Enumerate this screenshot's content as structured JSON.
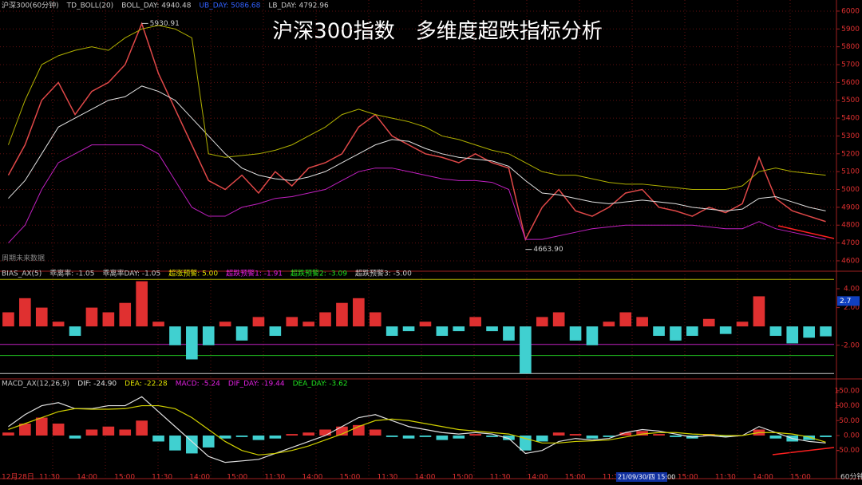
{
  "chart_data": [
    {
      "type": "line",
      "title": "沪深300指数　多维度超跌指标分析",
      "header": [
        {
          "text": "沪深300(60分钟)",
          "color": "#c8c8c8"
        },
        {
          "text": "TD_BOLL(20)",
          "color": "#c8c8c8"
        },
        {
          "text": "BOLL_DAY: 4940.48",
          "color": "#c8c8c8"
        },
        {
          "text": "UB_DAY: 5086.68",
          "color": "#3060ff"
        },
        {
          "text": "LB_DAY: 4792.96",
          "color": "#c8c8c8"
        }
      ],
      "note": "周期未来数据",
      "series": [
        {
          "name": "收盘",
          "color": "#e04848",
          "values": [
            5080,
            5250,
            5500,
            5600,
            5420,
            5550,
            5600,
            5700,
            5930,
            5650,
            5450,
            5250,
            5050,
            5000,
            5080,
            4980,
            5100,
            5020,
            5120,
            5150,
            5200,
            5350,
            5420,
            5300,
            5250,
            5200,
            5180,
            5150,
            5200,
            5150,
            5120,
            4720,
            4900,
            5000,
            4880,
            4850,
            4900,
            4980,
            5000,
            4900,
            4880,
            4850,
            4900,
            4870,
            4920,
            5180,
            4950,
            4880,
            4850,
            4820
          ]
        },
        {
          "name": "MID",
          "color": "#e0e0e0",
          "values": [
            4950,
            5050,
            5200,
            5350,
            5400,
            5450,
            5500,
            5520,
            5580,
            5550,
            5500,
            5400,
            5300,
            5200,
            5120,
            5080,
            5060,
            5050,
            5070,
            5100,
            5150,
            5200,
            5250,
            5280,
            5270,
            5230,
            5200,
            5180,
            5170,
            5160,
            5130,
            5050,
            4980,
            4970,
            4950,
            4930,
            4920,
            4930,
            4940,
            4930,
            4920,
            4900,
            4890,
            4880,
            4890,
            4950,
            4960,
            4930,
            4900,
            4880
          ]
        },
        {
          "name": "UB",
          "color": "#b0b000",
          "values": [
            5250,
            5500,
            5700,
            5750,
            5780,
            5800,
            5780,
            5850,
            5900,
            5920,
            5900,
            5850,
            5200,
            5180,
            5190,
            5200,
            5220,
            5250,
            5300,
            5350,
            5420,
            5450,
            5420,
            5400,
            5380,
            5350,
            5300,
            5280,
            5250,
            5220,
            5200,
            5150,
            5100,
            5080,
            5080,
            5060,
            5040,
            5030,
            5030,
            5020,
            5010,
            5000,
            5000,
            5000,
            5020,
            5100,
            5120,
            5100,
            5090,
            5080
          ]
        },
        {
          "name": "LB",
          "color": "#c020c0",
          "values": [
            4700,
            4800,
            5000,
            5150,
            5200,
            5250,
            5250,
            5250,
            5250,
            5200,
            5050,
            4900,
            4850,
            4850,
            4900,
            4920,
            4950,
            4960,
            4980,
            5000,
            5050,
            5100,
            5120,
            5120,
            5100,
            5080,
            5060,
            5050,
            5050,
            5040,
            5000,
            4720,
            4720,
            4740,
            4760,
            4780,
            4790,
            4800,
            4800,
            4800,
            4800,
            4800,
            4790,
            4780,
            4780,
            4820,
            4780,
            4760,
            4740,
            4720
          ]
        }
      ],
      "annotations": [
        {
          "value": 5930.91,
          "label": "5930.91"
        },
        {
          "value": 4663.9,
          "label": "4663.90"
        }
      ],
      "ylim": [
        4564,
        6040
      ],
      "yticks": [
        4600,
        4700,
        4800,
        4900,
        5000,
        5100,
        5200,
        5300,
        5400,
        5500,
        5600,
        5700,
        5800,
        5900,
        6000
      ],
      "grid": true
    },
    {
      "type": "bar",
      "header": [
        {
          "text": "BIAS_AX(5)",
          "color": "#c8c8c8"
        },
        {
          "text": "乖离率: -1.05",
          "color": "#c8c8c8"
        },
        {
          "text": "乖离率DAY: -1.05",
          "color": "#c8c8c8"
        },
        {
          "text": "超涨预警: 5.00",
          "color": "#e0e000"
        },
        {
          "text": "超跌预警1: -1.91",
          "color": "#e020e0"
        },
        {
          "text": "超跌预警2: -3.09",
          "color": "#20e020"
        },
        {
          "text": "超跌预警3: -5.00",
          "color": "#c8c8c8"
        }
      ],
      "values": [
        1.5,
        3,
        2,
        0.5,
        -1,
        2,
        1.5,
        2.5,
        4.8,
        0.5,
        -2,
        -3.5,
        -2,
        0.5,
        -1.5,
        1,
        -1,
        1,
        0.5,
        1.5,
        2.5,
        3,
        1.5,
        -1,
        -0.5,
        0.5,
        -1,
        -0.5,
        1,
        -0.5,
        -1.5,
        -5,
        1,
        1.5,
        -1.5,
        -2,
        0.5,
        1.5,
        1,
        -1,
        -1.5,
        -1,
        0.8,
        -0.8,
        0.5,
        3.2,
        -1,
        -1.8,
        -1.2,
        -1.05
      ],
      "up_color": "#e03030",
      "down_color": "#40d0d0",
      "hlines": [
        {
          "value": 5,
          "color": "#b0b000"
        },
        {
          "value": -1.91,
          "color": "#c020c0"
        },
        {
          "value": -3.09,
          "color": "#20c020"
        },
        {
          "value": -5,
          "color": "#c8c8c8"
        }
      ],
      "marker": 2.7,
      "ylim": [
        -5.15,
        5.44
      ],
      "yticks": [
        {
          "value": -2,
          "label": "-2.00"
        },
        {
          "value": 2,
          "label": "2.00"
        },
        {
          "value": 4,
          "label": "4.00"
        }
      ]
    },
    {
      "type": "bar",
      "header": [
        {
          "text": "MACD_AX(12,26,9)",
          "color": "#c8c8c8"
        },
        {
          "text": "DIF: -24.90",
          "color": "#e0e0e0"
        },
        {
          "text": "DEA: -22.28",
          "color": "#e0e000"
        },
        {
          "text": "MACD: -5.24",
          "color": "#e020e0"
        },
        {
          "text": "DIF_DAY: -19.44",
          "color": "#e020e0"
        },
        {
          "text": "DEA_DAY: -3.62",
          "color": "#20e020"
        }
      ],
      "values": [
        10,
        40,
        60,
        40,
        -10,
        20,
        30,
        20,
        50,
        -20,
        -50,
        -60,
        -40,
        -10,
        -5,
        -15,
        -10,
        5,
        10,
        20,
        30,
        35,
        20,
        -5,
        -10,
        -5,
        -15,
        -10,
        5,
        -5,
        -15,
        -50,
        -20,
        10,
        5,
        -10,
        -5,
        10,
        15,
        5,
        -5,
        -10,
        5,
        -5,
        0,
        20,
        -10,
        -20,
        -15,
        -5.24
      ],
      "up_color": "#e03030",
      "down_color": "#40d0d0",
      "series": [
        {
          "name": "DIF",
          "color": "#e0e0e0",
          "values": [
            30,
            70,
            100,
            110,
            90,
            90,
            100,
            100,
            130,
            80,
            30,
            -20,
            -70,
            -90,
            -85,
            -80,
            -60,
            -40,
            -20,
            0,
            30,
            60,
            70,
            50,
            30,
            20,
            10,
            5,
            10,
            5,
            -10,
            -60,
            -50,
            -20,
            -10,
            -15,
            -10,
            10,
            20,
            15,
            5,
            -5,
            0,
            -5,
            0,
            30,
            10,
            -10,
            -20,
            -24.9
          ]
        },
        {
          "name": "DEA",
          "color": "#d0d000",
          "values": [
            20,
            40,
            60,
            80,
            90,
            88,
            88,
            90,
            100,
            100,
            90,
            60,
            20,
            -20,
            -50,
            -65,
            -60,
            -50,
            -35,
            -15,
            5,
            30,
            50,
            55,
            50,
            40,
            30,
            20,
            15,
            10,
            5,
            -10,
            -25,
            -25,
            -20,
            -18,
            -15,
            -5,
            5,
            10,
            10,
            5,
            3,
            0,
            0,
            10,
            10,
            5,
            -5,
            -22.28
          ]
        }
      ],
      "x_labels": [
        "12月28日",
        "11:30",
        "14:00",
        "15:00",
        "11:30",
        "14:00",
        "15:00",
        "11:30",
        "14:00",
        "15:00",
        "11:30",
        "14:00",
        "15:00",
        "11:30",
        "14:00",
        "15:00",
        "11:30",
        "14:00",
        "15:00",
        "11:30",
        "14:00",
        "15:00"
      ],
      "cursor_label": "21/09/30/四 15:00",
      "period": "60分钟",
      "ylim": [
        -139,
        181.6
      ],
      "yticks": [
        {
          "value": -50,
          "label": "-50.00"
        },
        {
          "value": 0,
          "label": "0.00"
        },
        {
          "value": 50,
          "label": "50.00"
        },
        {
          "value": 100,
          "label": "100.00"
        },
        {
          "value": 150,
          "label": "150.00"
        }
      ]
    }
  ]
}
